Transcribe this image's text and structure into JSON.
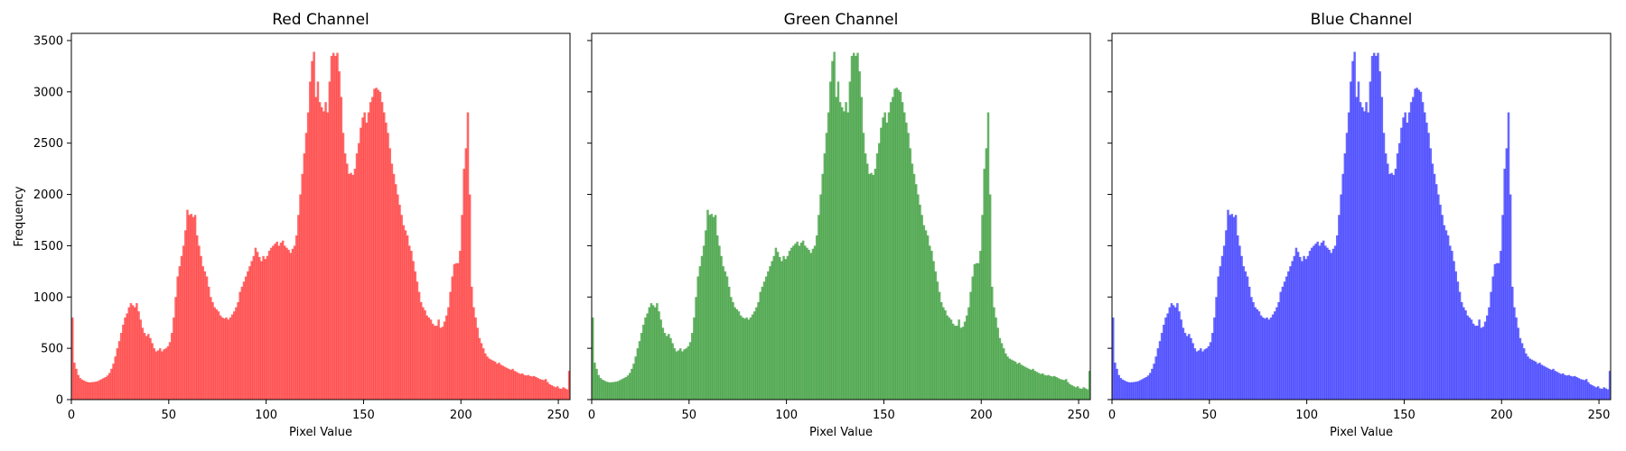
{
  "chart_data": [
    {
      "type": "bar",
      "title": "Red Channel",
      "xlabel": "Pixel Value",
      "ylabel": "Frequency",
      "xlim": [
        0,
        256
      ],
      "ylim": [
        0,
        3570
      ],
      "xticks": [
        0,
        50,
        100,
        150,
        200,
        250
      ],
      "yticks": [
        0,
        500,
        1000,
        1500,
        2000,
        2500,
        3000,
        3500
      ],
      "color": "#ff0000",
      "alpha": 0.6,
      "bins": 256,
      "show_yticklabels": true,
      "grid": false
    },
    {
      "type": "bar",
      "title": "Green Channel",
      "xlabel": "Pixel Value",
      "ylabel": "",
      "xlim": [
        0,
        256
      ],
      "ylim": [
        0,
        3570
      ],
      "xticks": [
        0,
        50,
        100,
        150,
        200,
        250
      ],
      "yticks": [
        0,
        500,
        1000,
        1500,
        2000,
        2500,
        3000,
        3500
      ],
      "color": "#008000",
      "alpha": 0.6,
      "bins": 256,
      "show_yticklabels": false,
      "grid": false
    },
    {
      "type": "bar",
      "title": "Blue Channel",
      "xlabel": "Pixel Value",
      "ylabel": "",
      "xlim": [
        0,
        256
      ],
      "ylim": [
        0,
        3570
      ],
      "xticks": [
        0,
        50,
        100,
        150,
        200,
        250
      ],
      "yticks": [
        0,
        500,
        1000,
        1500,
        2000,
        2500,
        3000,
        3500
      ],
      "color": "#0000ff",
      "alpha": 0.6,
      "bins": 256,
      "show_yticklabels": false,
      "grid": false
    }
  ],
  "histogram_values": [
    800,
    360,
    300,
    240,
    210,
    195,
    185,
    175,
    170,
    168,
    170,
    172,
    175,
    180,
    190,
    200,
    210,
    220,
    235,
    260,
    300,
    350,
    420,
    500,
    570,
    650,
    730,
    800,
    840,
    900,
    940,
    920,
    900,
    940,
    860,
    780,
    700,
    650,
    620,
    640,
    600,
    550,
    500,
    470,
    480,
    500,
    470,
    490,
    500,
    520,
    560,
    650,
    800,
    1000,
    1200,
    1300,
    1400,
    1500,
    1650,
    1850,
    1800,
    1810,
    1780,
    1800,
    1600,
    1500,
    1400,
    1300,
    1250,
    1200,
    1100,
    1000,
    950,
    900,
    880,
    860,
    820,
    800,
    790,
    800,
    780,
    800,
    830,
    860,
    900,
    950,
    1050,
    1100,
    1150,
    1200,
    1250,
    1300,
    1350,
    1400,
    1480,
    1440,
    1390,
    1350,
    1400,
    1370,
    1400,
    1450,
    1480,
    1500,
    1520,
    1540,
    1500,
    1530,
    1550,
    1500,
    1480,
    1460,
    1430,
    1470,
    1500,
    1600,
    1800,
    2000,
    2200,
    2400,
    2600,
    2800,
    3100,
    3300,
    3390,
    2950,
    3100,
    2900,
    2850,
    2810,
    2900,
    2800,
    3100,
    3350,
    3380,
    3350,
    3380,
    3200,
    2950,
    2600,
    2400,
    2300,
    2200,
    2210,
    2190,
    2250,
    2400,
    2500,
    2650,
    2750,
    2800,
    2700,
    2800,
    2900,
    2950,
    3030,
    3040,
    3020,
    3000,
    2900,
    2800,
    2700,
    2600,
    2450,
    2300,
    2200,
    2100,
    2000,
    1900,
    1800,
    1700,
    1650,
    1600,
    1500,
    1450,
    1350,
    1250,
    1150,
    1050,
    950,
    900,
    870,
    820,
    800,
    780,
    740,
    720,
    720,
    780,
    700,
    710,
    760,
    820,
    900,
    1050,
    1200,
    1320,
    1330,
    1330,
    1450,
    1800,
    2250,
    2450,
    2800,
    2000,
    1100,
    900,
    800,
    700,
    600,
    550,
    500,
    450,
    420,
    400,
    390,
    380,
    370,
    350,
    360,
    340,
    330,
    320,
    310,
    300,
    290,
    300,
    280,
    270,
    260,
    250,
    255,
    240,
    235,
    240,
    230,
    225,
    230,
    220,
    210,
    200,
    195,
    190,
    200,
    170,
    150,
    140,
    130,
    120,
    130,
    110,
    105,
    120,
    110,
    100,
    280
  ]
}
